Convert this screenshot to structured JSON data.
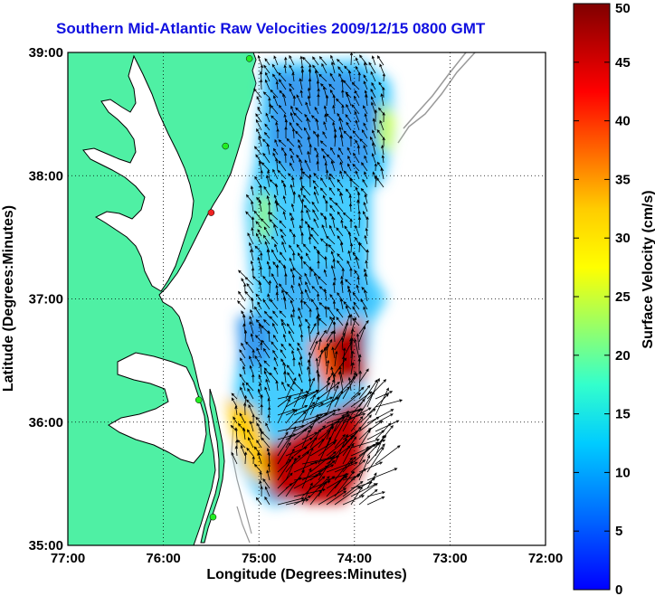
{
  "title": "Southern Mid-Atlantic Raw Velocities 2009/12/15 0800 GMT",
  "colors": {
    "land": "#4ff0a4",
    "water": "#ffffff",
    "coast_line": "#000000",
    "bathymetry": "#999999",
    "arrows": "#000000",
    "station_green": "#22ee22",
    "station_red": "#ee2222"
  },
  "chart_data": {
    "type": "heatmap",
    "xlabel": "Longitude (Degrees:Minutes)",
    "ylabel": "Latitude (Degrees:Minutes)",
    "x_ticks": [
      "77:00",
      "76:00",
      "75:00",
      "74:00",
      "73:00",
      "72:00"
    ],
    "y_ticks": [
      "39:00",
      "38:00",
      "37:00",
      "36:00",
      "35:00"
    ],
    "xlim": [
      -77,
      -72
    ],
    "ylim": [
      35,
      39
    ],
    "grid": "dotted",
    "colorbar": {
      "label": "Surface Velocity (cm/s)",
      "ticks": [
        "0",
        "5",
        "10",
        "15",
        "20",
        "25",
        "30",
        "35",
        "40",
        "45",
        "50"
      ],
      "range": [
        0,
        50
      ],
      "colormap": "jet"
    },
    "stations": [
      {
        "lon": -75.1,
        "lat": 38.95,
        "color": "green"
      },
      {
        "lon": -75.35,
        "lat": 38.24,
        "color": "green"
      },
      {
        "lon": -75.5,
        "lat": 37.7,
        "color": "red"
      },
      {
        "lon": -75.63,
        "lat": 36.18,
        "color": "green"
      },
      {
        "lon": -75.48,
        "lat": 35.23,
        "color": "green"
      }
    ]
  }
}
